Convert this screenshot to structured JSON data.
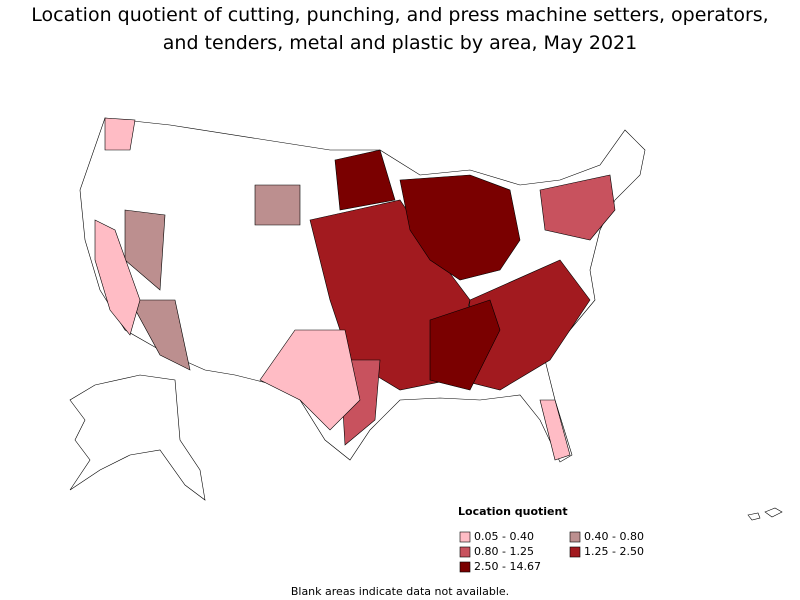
{
  "title": [
    "Location quotient of cutting, punching, and press machine setters, operators,",
    "and tenders, metal and plastic by area, May 2021"
  ],
  "legend": {
    "title": "Location quotient",
    "items": [
      {
        "label": "0.05 - 0.40",
        "color": "#ffbcc5"
      },
      {
        "label": "0.40 - 0.80",
        "color": "#bc8f8f"
      },
      {
        "label": "0.80 - 1.25",
        "color": "#c8525e"
      },
      {
        "label": "1.25 - 2.50",
        "color": "#a21a1f"
      },
      {
        "label": "2.50 - 14.67",
        "color": "#7a0000"
      }
    ]
  },
  "note": "Blank areas indicate data not available."
}
